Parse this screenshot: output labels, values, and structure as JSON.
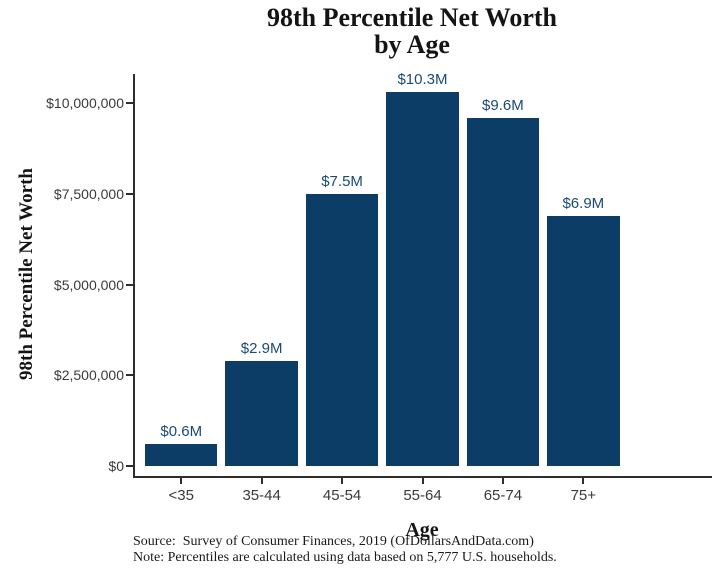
{
  "title": {
    "line1": "98th Percentile Net Worth",
    "line2": "by Age"
  },
  "chart_data": {
    "type": "bar",
    "title": "98th Percentile Net Worth by Age",
    "categories": [
      "<35",
      "35-44",
      "45-54",
      "55-64",
      "65-74",
      "75+"
    ],
    "values": [
      600000,
      2900000,
      7500000,
      10300000,
      9600000,
      6900000
    ],
    "bar_labels": [
      "$0.6M",
      "$2.9M",
      "$7.5M",
      "$10.3M",
      "$9.6M",
      "$6.9M"
    ],
    "xlabel": "Age",
    "ylabel": "98th Percentile Net Worth",
    "ylim": [
      0,
      10800000
    ],
    "yticks": {
      "values": [
        0,
        2500000,
        5000000,
        7500000,
        10000000
      ],
      "labels": [
        "$0",
        "$2,500,000",
        "$5,000,000",
        "$7,500,000",
        "$10,000,000"
      ]
    },
    "grid": false,
    "legend": null,
    "colors": {
      "bar": "#0b3d66",
      "bar_label_text": "#1a4a74",
      "axis_line": "#2e2e2e",
      "tick_text": "#3a3a3a"
    }
  },
  "footer": {
    "source": "Source:  Survey of Consumer Finances, 2019 (OfDollarsAndData.com)",
    "note": "Note: Percentiles are calculated using data based on 5,777 U.S. households."
  }
}
